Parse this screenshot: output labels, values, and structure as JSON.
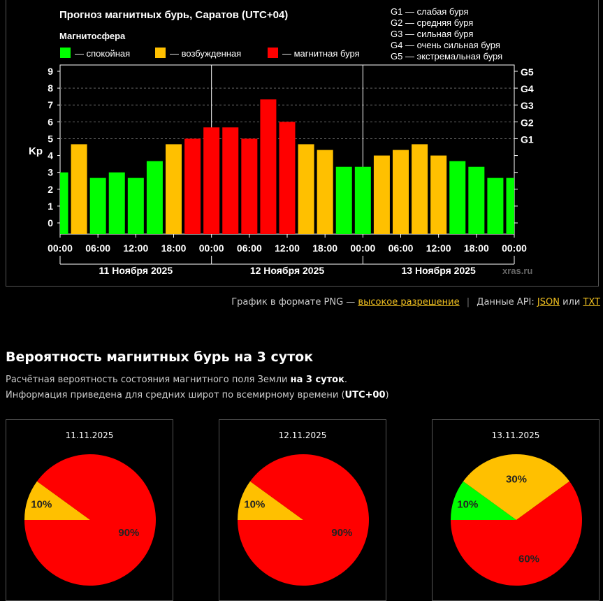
{
  "chart_data": [
    {
      "type": "bar",
      "title": "Прогноз магнитных бурь, Саратов (UTC+04)",
      "legend_title": "Магнитосфера",
      "legend": [
        {
          "label": "— спокойная",
          "color": "#00ff00"
        },
        {
          "label": "— возбужденная",
          "color": "#ffc000"
        },
        {
          "label": "— магнитная буря",
          "color": "#ff0000"
        }
      ],
      "g_legend": [
        "G1 — слабая буря",
        "G2 — средняя буря",
        "G3 — сильная буря",
        "G4 — очень сильная буря",
        "G5 — экстремальная буря"
      ],
      "ylabel": "Kp",
      "ylim": [
        0,
        9
      ],
      "yticks": [
        "0",
        "1",
        "2",
        "3",
        "4",
        "5",
        "6",
        "7",
        "8",
        "9"
      ],
      "g_ticks": [
        {
          "label": "G1",
          "kp": 5
        },
        {
          "label": "G2",
          "kp": 6
        },
        {
          "label": "G3",
          "kp": 7
        },
        {
          "label": "G4",
          "kp": 8
        },
        {
          "label": "G5",
          "kp": 9
        }
      ],
      "xticks": [
        "00:00",
        "06:00",
        "12:00",
        "18:00",
        "00:00",
        "06:00",
        "12:00",
        "18:00",
        "00:00",
        "06:00",
        "12:00",
        "18:00",
        "00:00"
      ],
      "days": [
        "11 Ноября 2025",
        "12 Ноября 2025",
        "13 Ноября 2025"
      ],
      "watermark": "xras.ru",
      "values": [
        3,
        4.67,
        2.67,
        3,
        2.67,
        3.67,
        4.67,
        5,
        5.67,
        5.67,
        5,
        7.33,
        6,
        4.67,
        4.33,
        3.33,
        3.33,
        4,
        4.33,
        4.67,
        4,
        3.67,
        3.33,
        2.67,
        2.67
      ],
      "colors": [
        "#00ff00",
        "#ffc000",
        "#00ff00",
        "#00ff00",
        "#00ff00",
        "#00ff00",
        "#ffc000",
        "#ff0000",
        "#ff0000",
        "#ff0000",
        "#ff0000",
        "#ff0000",
        "#ff0000",
        "#ffc000",
        "#ffc000",
        "#00ff00",
        "#00ff00",
        "#ffc000",
        "#ffc000",
        "#ffc000",
        "#ffc000",
        "#00ff00",
        "#00ff00",
        "#00ff00",
        "#00ff00"
      ]
    },
    {
      "type": "pie",
      "title": "11.11.2025",
      "slices": [
        {
          "label": "10%",
          "value": 10,
          "color": "#ffc000"
        },
        {
          "label": "90%",
          "value": 90,
          "color": "#ff0000"
        }
      ]
    },
    {
      "type": "pie",
      "title": "12.11.2025",
      "slices": [
        {
          "label": "10%",
          "value": 10,
          "color": "#ffc000"
        },
        {
          "label": "90%",
          "value": 90,
          "color": "#ff0000"
        }
      ]
    },
    {
      "type": "pie",
      "title": "13.11.2025",
      "slices": [
        {
          "label": "10%",
          "value": 10,
          "color": "#00ff00"
        },
        {
          "label": "30%",
          "value": 30,
          "color": "#ffc000"
        },
        {
          "label": "60%",
          "value": 60,
          "color": "#ff0000"
        }
      ]
    }
  ],
  "links": {
    "png_prefix": "График в формате PNG —",
    "hires": "высокое разрешение",
    "api_prefix": "Данные API:",
    "json": "JSON",
    "or": "или",
    "txt": "TXT"
  },
  "probability": {
    "heading": "Вероятность магнитных бурь на 3 суток",
    "desc1_prefix": "Расчётная вероятность состояния магнитного поля Земли",
    "desc1_bold": "на 3 суток",
    "desc1_suffix": ".",
    "desc2_prefix": "Информация приведена для средних широт по всемирному времени (",
    "desc2_bold": "UTC+00",
    "desc2_suffix": ")"
  }
}
